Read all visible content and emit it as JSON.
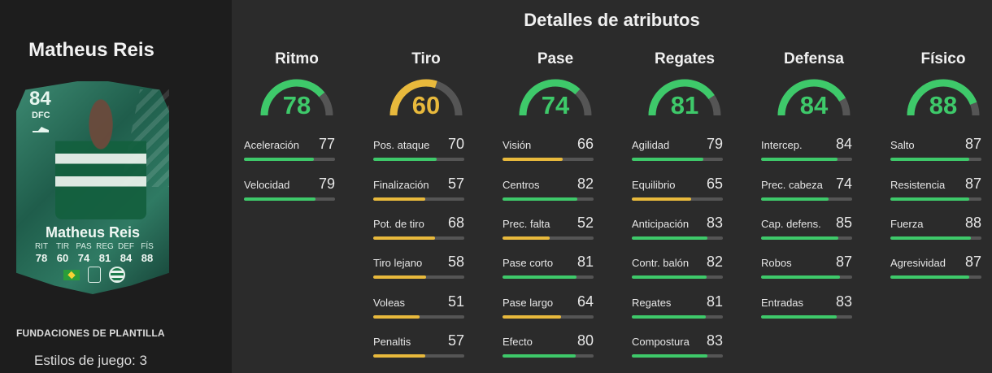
{
  "player": {
    "name": "Matheus Reis",
    "card": {
      "rating": "84",
      "position": "DFC",
      "name": "Matheus Reis",
      "stats": [
        {
          "label": "RIT",
          "value": "78"
        },
        {
          "label": "TIR",
          "value": "60"
        },
        {
          "label": "PAS",
          "value": "74"
        },
        {
          "label": "REG",
          "value": "81"
        },
        {
          "label": "DEF",
          "value": "84"
        },
        {
          "label": "FÍS",
          "value": "88"
        }
      ]
    },
    "foundations_label": "FUNDACIONES DE PLANTILLA",
    "playstyles_label": "Estilos de juego: 3"
  },
  "title": "Detalles de atributos",
  "colors": {
    "green": "#3ec96a",
    "yellow": "#e8b93c",
    "track": "#555555"
  },
  "categories": [
    {
      "name": "Ritmo",
      "value": "78",
      "rating": 78,
      "attributes": [
        {
          "label": "Aceleración",
          "value": "77",
          "rating": 77
        },
        {
          "label": "Velocidad",
          "value": "79",
          "rating": 79
        }
      ]
    },
    {
      "name": "Tiro",
      "value": "60",
      "rating": 60,
      "attributes": [
        {
          "label": "Pos. ataque",
          "value": "70",
          "rating": 70
        },
        {
          "label": "Finalización",
          "value": "57",
          "rating": 57
        },
        {
          "label": "Pot. de tiro",
          "value": "68",
          "rating": 68
        },
        {
          "label": "Tiro lejano",
          "value": "58",
          "rating": 58
        },
        {
          "label": "Voleas",
          "value": "51",
          "rating": 51
        },
        {
          "label": "Penaltis",
          "value": "57",
          "rating": 57
        }
      ]
    },
    {
      "name": "Pase",
      "value": "74",
      "rating": 74,
      "attributes": [
        {
          "label": "Visión",
          "value": "66",
          "rating": 66
        },
        {
          "label": "Centros",
          "value": "82",
          "rating": 82
        },
        {
          "label": "Prec. falta",
          "value": "52",
          "rating": 52
        },
        {
          "label": "Pase corto",
          "value": "81",
          "rating": 81
        },
        {
          "label": "Pase largo",
          "value": "64",
          "rating": 64
        },
        {
          "label": "Efecto",
          "value": "80",
          "rating": 80
        }
      ]
    },
    {
      "name": "Regates",
      "value": "81",
      "rating": 81,
      "attributes": [
        {
          "label": "Agilidad",
          "value": "79",
          "rating": 79
        },
        {
          "label": "Equilibrio",
          "value": "65",
          "rating": 65
        },
        {
          "label": "Anticipación",
          "value": "83",
          "rating": 83
        },
        {
          "label": "Contr. balón",
          "value": "82",
          "rating": 82
        },
        {
          "label": "Regates",
          "value": "81",
          "rating": 81
        },
        {
          "label": "Compostura",
          "value": "83",
          "rating": 83
        }
      ]
    },
    {
      "name": "Defensa",
      "value": "84",
      "rating": 84,
      "attributes": [
        {
          "label": "Intercep.",
          "value": "84",
          "rating": 84
        },
        {
          "label": "Prec. cabeza",
          "value": "74",
          "rating": 74
        },
        {
          "label": "Cap. defens.",
          "value": "85",
          "rating": 85
        },
        {
          "label": "Robos",
          "value": "87",
          "rating": 87
        },
        {
          "label": "Entradas",
          "value": "83",
          "rating": 83
        }
      ]
    },
    {
      "name": "Físico",
      "value": "88",
      "rating": 88,
      "attributes": [
        {
          "label": "Salto",
          "value": "87",
          "rating": 87
        },
        {
          "label": "Resistencia",
          "value": "87",
          "rating": 87
        },
        {
          "label": "Fuerza",
          "value": "88",
          "rating": 88
        },
        {
          "label": "Agresividad",
          "value": "87",
          "rating": 87
        }
      ]
    }
  ]
}
